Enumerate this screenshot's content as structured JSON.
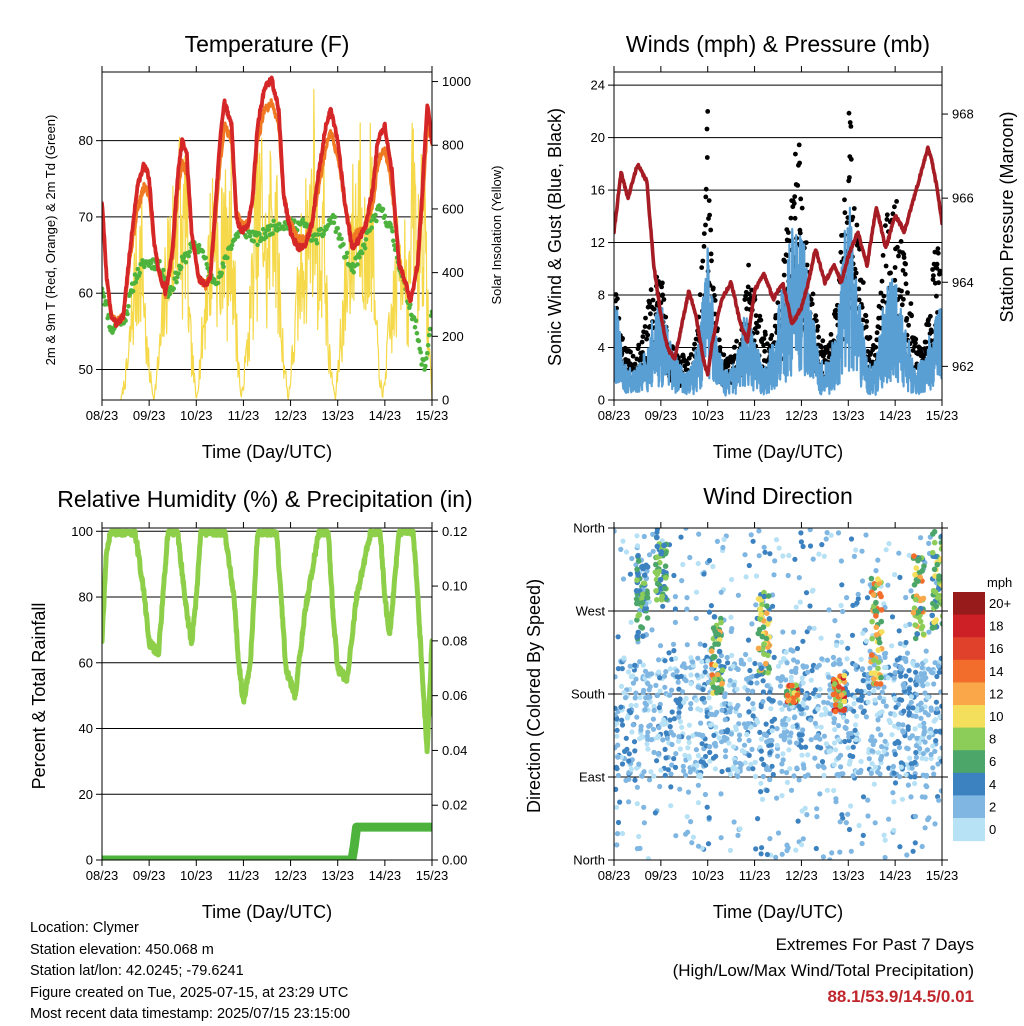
{
  "time_ticks": [
    "08/23",
    "09/23",
    "10/23",
    "11/23",
    "12/23",
    "13/23",
    "14/23",
    "15/23"
  ],
  "colors": {
    "t2m": "#d62728",
    "t9m": "#f07a24",
    "td": "#4db33d",
    "solar": "#f5d94a",
    "wind": "#5a9fd4",
    "gust": "#000000",
    "pressure": "#a51c24",
    "rh": "#8ecf4a",
    "precip": "#4db33d"
  },
  "chart_data": [
    {
      "type": "line",
      "title": "Temperature (F)",
      "xlabel": "Time (Day/UTC)",
      "ylabel": "2m & 9m T (Red, Orange) & 2m Td (Green)",
      "y2label": "Solar Insolation (Yellow)",
      "xlim": [
        0,
        7
      ],
      "ylim": [
        46,
        89
      ],
      "y2lim": [
        0,
        1030
      ],
      "yticks": [
        50,
        60,
        70,
        80
      ],
      "y2ticks": [
        0,
        200,
        400,
        600,
        800,
        1000
      ],
      "grid": true,
      "series": [
        {
          "key": "t2m",
          "x": [
            0,
            0.1,
            0.2,
            0.3,
            0.45,
            0.6,
            0.75,
            0.9,
            1.0,
            1.1,
            1.2,
            1.35,
            1.5,
            1.6,
            1.7,
            1.8,
            1.9,
            2.05,
            2.2,
            2.3,
            2.4,
            2.5,
            2.6,
            2.75,
            2.85,
            2.95,
            3.1,
            3.2,
            3.3,
            3.45,
            3.6,
            3.75,
            3.85,
            4.0,
            4.15,
            4.3,
            4.45,
            4.6,
            4.75,
            4.85,
            5.0,
            5.15,
            5.3,
            5.45,
            5.6,
            5.75,
            5.85,
            6.0,
            6.15,
            6.3,
            6.45,
            6.55,
            6.7,
            6.8,
            6.9,
            7.0
          ],
          "values": [
            72,
            62,
            57,
            56,
            57,
            66,
            74,
            77,
            75,
            67,
            63,
            60,
            66,
            75,
            80,
            78,
            68,
            62,
            61,
            62,
            71,
            80,
            85,
            82,
            70,
            68,
            69,
            73,
            82,
            87,
            88,
            84,
            73,
            68,
            66,
            66,
            69,
            76,
            82,
            84,
            80,
            72,
            66,
            67,
            69,
            74,
            80,
            82,
            76,
            64,
            61,
            59,
            64,
            74,
            85,
            80
          ]
        },
        {
          "key": "t9m",
          "x": [
            0,
            0.1,
            0.2,
            0.3,
            0.45,
            0.6,
            0.75,
            0.9,
            1.0,
            1.1,
            1.2,
            1.35,
            1.5,
            1.6,
            1.7,
            1.8,
            1.9,
            2.05,
            2.2,
            2.3,
            2.4,
            2.5,
            2.6,
            2.75,
            2.85,
            2.95,
            3.1,
            3.2,
            3.3,
            3.45,
            3.6,
            3.75,
            3.85,
            4.0,
            4.15,
            4.3,
            4.45,
            4.6,
            4.75,
            4.85,
            5.0,
            5.15,
            5.3,
            5.45,
            5.6,
            5.75,
            5.85,
            6.0,
            6.15,
            6.3,
            6.45,
            6.55,
            6.7,
            6.8,
            6.9,
            7.0
          ],
          "values": [
            72,
            62,
            57,
            56,
            57,
            65,
            71,
            74,
            73,
            67,
            63,
            60,
            65,
            73,
            77,
            76,
            68,
            62,
            61,
            62,
            69,
            77,
            82,
            80,
            71,
            69,
            69,
            72,
            80,
            84,
            85,
            82,
            73,
            69,
            67,
            67,
            69,
            74,
            79,
            81,
            78,
            72,
            67,
            68,
            69,
            72,
            77,
            79,
            74,
            64,
            61,
            59,
            64,
            72,
            82,
            80
          ]
        },
        {
          "key": "td",
          "x": [
            0,
            0.1,
            0.2,
            0.3,
            0.5,
            0.7,
            0.9,
            1.1,
            1.3,
            1.4,
            1.5,
            1.7,
            1.9,
            2.1,
            2.3,
            2.5,
            2.7,
            2.9,
            3.1,
            3.3,
            3.5,
            3.7,
            3.9,
            4.1,
            4.3,
            4.5,
            4.7,
            4.9,
            5.1,
            5.3,
            5.5,
            5.7,
            5.9,
            6.1,
            6.3,
            6.45,
            6.55,
            6.65,
            6.75,
            6.85,
            6.95,
            7.0
          ],
          "values": [
            61,
            58,
            55,
            56,
            57,
            62,
            64,
            64,
            63,
            60,
            61,
            64,
            66,
            66,
            62,
            62,
            66,
            68,
            68,
            67,
            68,
            69,
            69,
            69,
            69,
            67,
            68,
            70,
            66,
            63,
            65,
            69,
            71,
            69,
            64,
            60,
            58,
            56,
            52,
            50,
            55,
            58
          ]
        },
        {
          "key": "solar",
          "x": [
            0.4,
            0.55,
            0.7,
            0.85,
            0.95,
            1.1,
            1.25,
            1.4,
            1.55,
            1.62,
            1.7,
            1.78,
            1.85,
            2.0,
            2.1,
            2.25,
            2.4,
            2.5,
            2.58,
            2.66,
            2.75,
            2.85,
            2.95,
            3.1,
            3.25,
            3.4,
            3.5,
            3.6,
            3.7,
            3.8,
            3.95,
            4.1,
            4.25,
            4.4,
            4.5,
            4.6,
            4.7,
            4.8,
            4.95,
            5.05,
            5.25,
            5.4,
            5.5,
            5.6,
            5.7,
            5.8,
            5.95,
            6.05,
            6.25,
            6.4,
            6.5,
            6.6,
            6.7,
            6.8,
            6.95,
            7.0
          ],
          "values": [
            0,
            150,
            500,
            620,
            200,
            0,
            250,
            600,
            700,
            950,
            600,
            850,
            300,
            0,
            200,
            550,
            800,
            400,
            900,
            500,
            750,
            300,
            0,
            250,
            650,
            850,
            500,
            900,
            700,
            300,
            0,
            300,
            600,
            700,
            950,
            500,
            800,
            200,
            0,
            250,
            600,
            800,
            950,
            500,
            850,
            300,
            0,
            200,
            500,
            700,
            400,
            900,
            600,
            850,
            200,
            0
          ]
        }
      ]
    },
    {
      "type": "line",
      "title": "Winds (mph) & Pressure (mb)",
      "xlabel": "Time (Day/UTC)",
      "ylabel": "Sonic Wind & Gust (Blue, Black)",
      "y2label": "Station Pressure (Maroon)",
      "xlim": [
        0,
        7
      ],
      "ylim": [
        0,
        25
      ],
      "y2lim": [
        961.2,
        969.0
      ],
      "yticks": [
        0,
        4,
        8,
        12,
        16,
        20,
        24
      ],
      "y2ticks": [
        962,
        964,
        966,
        968
      ],
      "grid": true,
      "series": [
        {
          "key": "pressure",
          "x": [
            0,
            0.15,
            0.3,
            0.5,
            0.7,
            0.85,
            1.0,
            1.15,
            1.3,
            1.45,
            1.6,
            1.75,
            1.9,
            2.0,
            2.1,
            2.3,
            2.5,
            2.7,
            2.85,
            3.0,
            3.2,
            3.4,
            3.6,
            3.8,
            4.0,
            4.15,
            4.3,
            4.5,
            4.7,
            4.85,
            5.0,
            5.2,
            5.4,
            5.6,
            5.8,
            6.0,
            6.2,
            6.4,
            6.55,
            6.7,
            6.8,
            6.9,
            7.0
          ],
          "values": [
            965.2,
            966.6,
            966.0,
            966.8,
            966.4,
            964.4,
            963.2,
            962.4,
            962.2,
            963.0,
            963.8,
            963.2,
            962.2,
            961.8,
            962.6,
            963.6,
            964.0,
            963.0,
            962.6,
            963.8,
            964.2,
            963.6,
            964.0,
            963.0,
            963.4,
            964.0,
            964.8,
            964.0,
            964.4,
            964.0,
            964.6,
            965.2,
            964.4,
            965.8,
            964.8,
            965.6,
            965.2,
            966.0,
            966.6,
            967.2,
            966.8,
            966.2,
            965.4
          ]
        },
        {
          "key": "gust",
          "x": [
            0,
            0.2,
            0.4,
            0.6,
            0.8,
            1.0,
            1.1,
            1.2,
            1.4,
            1.6,
            1.8,
            1.95,
            2.0,
            2.1,
            2.3,
            2.5,
            2.7,
            2.9,
            3.1,
            3.3,
            3.5,
            3.7,
            3.85,
            3.9,
            4.0,
            4.2,
            4.4,
            4.6,
            4.8,
            4.95,
            5.0,
            5.2,
            5.4,
            5.6,
            5.8,
            6.0,
            6.2,
            6.4,
            6.6,
            6.8,
            6.9,
            7.0
          ],
          "values": [
            9,
            4,
            3,
            4,
            8,
            9,
            6,
            4,
            3,
            3,
            6,
            12,
            22,
            9,
            3,
            3,
            5,
            10,
            6,
            4,
            7,
            12,
            14,
            20,
            16,
            8,
            4,
            4,
            8,
            16,
            22,
            12,
            5,
            4,
            12,
            14,
            10,
            5,
            3,
            9,
            11,
            8
          ]
        },
        {
          "key": "wind",
          "x": [
            0,
            0.2,
            0.4,
            0.6,
            0.8,
            1.0,
            1.2,
            1.4,
            1.6,
            1.8,
            2.0,
            2.2,
            2.4,
            2.6,
            2.8,
            3.0,
            3.2,
            3.4,
            3.6,
            3.8,
            4.0,
            4.2,
            4.4,
            4.6,
            4.8,
            5.0,
            5.2,
            5.4,
            5.6,
            5.8,
            6.0,
            6.2,
            6.4,
            6.6,
            6.8,
            7.0
          ],
          "values": [
            6,
            2,
            1.5,
            2,
            4,
            5,
            3,
            2,
            1.5,
            3,
            8,
            3,
            1.5,
            2,
            5,
            3,
            2,
            3,
            6,
            9,
            10,
            5,
            2,
            2,
            5,
            11,
            6,
            2,
            2,
            6,
            7,
            4,
            2,
            2,
            4,
            5
          ]
        }
      ]
    },
    {
      "type": "line",
      "title": "Relative Humidity (%) & Precipitation (in)",
      "xlabel": "Time (Day/UTC)",
      "ylabel": "Percent & Total Rainfall",
      "xlim": [
        0,
        7
      ],
      "ylim": [
        0,
        101
      ],
      "y2lim": [
        0,
        0.1212
      ],
      "yticks": [
        0,
        20,
        40,
        60,
        80,
        100
      ],
      "y2ticks": [
        0.0,
        0.02,
        0.04,
        0.06,
        0.08,
        0.1,
        0.12
      ],
      "grid": true,
      "series": [
        {
          "key": "rh",
          "x": [
            0,
            0.1,
            0.2,
            0.3,
            0.7,
            0.9,
            1.0,
            1.2,
            1.4,
            1.5,
            1.6,
            1.8,
            1.9,
            2.0,
            2.1,
            2.3,
            2.6,
            2.8,
            2.9,
            3.0,
            3.15,
            3.3,
            3.5,
            3.7,
            3.8,
            3.9,
            4.1,
            4.3,
            4.6,
            4.8,
            4.9,
            5.0,
            5.2,
            5.4,
            5.7,
            5.9,
            6.0,
            6.1,
            6.3,
            6.5,
            6.6,
            6.7,
            6.8,
            6.9,
            7.0
          ],
          "values": [
            67,
            95,
            100,
            100,
            100,
            80,
            66,
            63,
            100,
            100,
            100,
            75,
            66,
            80,
            100,
            100,
            100,
            80,
            60,
            48,
            60,
            100,
            100,
            100,
            80,
            58,
            50,
            75,
            100,
            100,
            75,
            58,
            55,
            80,
            100,
            100,
            80,
            68,
            100,
            100,
            100,
            80,
            55,
            33,
            67
          ]
        },
        {
          "key": "precip",
          "x": [
            0,
            5.3,
            5.35,
            5.4,
            7.0
          ],
          "values": [
            0,
            0,
            0.005,
            0.012,
            0.012
          ]
        }
      ]
    },
    {
      "type": "scatter",
      "title": "Wind Direction",
      "xlabel": "Time (Day/UTC)",
      "ylabel": "Direction (Colored By Speed)",
      "xlim": [
        0,
        7
      ],
      "ylim": [
        0,
        360
      ],
      "yticks": [
        0,
        90,
        180,
        270,
        360
      ],
      "yticklabels": [
        "North",
        "East",
        "South",
        "West",
        "North"
      ],
      "grid": true,
      "legend": {
        "title": "mph",
        "labels": [
          "20+",
          "18",
          "16",
          "14",
          "12",
          "10",
          "8",
          "6",
          "4",
          "2",
          "0"
        ],
        "colors": [
          "#981b1b",
          "#cd2026",
          "#e0412a",
          "#f26c2b",
          "#f9a749",
          "#f4df5c",
          "#8ccc59",
          "#4ca66a",
          "#3d82c0",
          "#7fb6e2",
          "#b7e1f5"
        ]
      }
    }
  ],
  "info": {
    "location": "Location: Clymer",
    "elevation": "Station elevation: 450.068 m",
    "latlon": "Station lat/lon: 42.0245; -79.6241",
    "created": "Figure created on Tue, 2025-07-15, at 23:29 UTC",
    "recent": "Most recent data timestamp: 2025/07/15 23:15:00"
  },
  "extremes": {
    "title": "Extremes For Past 7 Days",
    "subtitle": "(High/Low/Max Wind/Total Precipitation)",
    "values": "88.1/53.9/14.5/0.01"
  }
}
